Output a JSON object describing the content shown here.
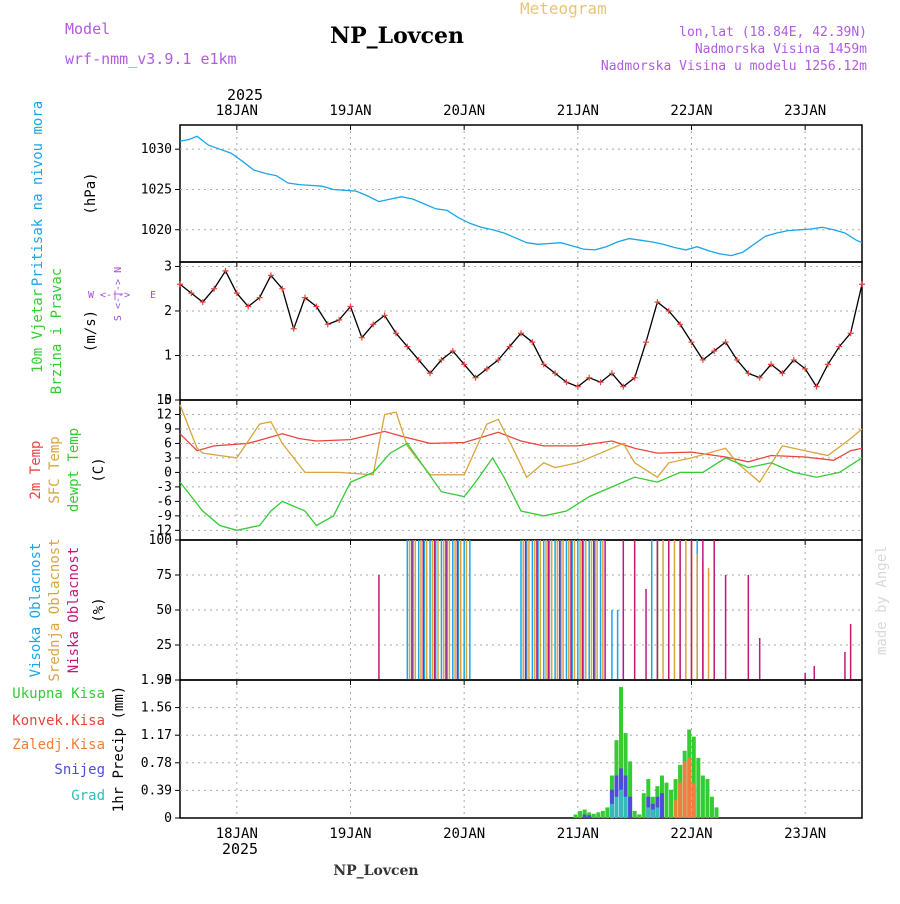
{
  "header": {
    "model_label": "Model",
    "model_name": "wrf-nmm_v3.9.1 e1km",
    "title": "Meteogram",
    "station": "NP_Lovcen",
    "coords": "lon,lat (18.84E, 42.39N)",
    "elevation": "Nadmorska Visina 1459m",
    "model_elevation": "Nadmorska Visina u modelu 1256.12m",
    "year_top": "2025",
    "year_bottom": "2025",
    "footer_station": "NP_Lovcen",
    "credit": "made by Angel"
  },
  "colors": {
    "pressure": "#1aa6e8",
    "wind_label": "#33cc33",
    "wind_dir": "#a64dd9",
    "temp_2m": "#e8453c",
    "temp_sfc": "#d9a53c",
    "dewpt": "#33cc33",
    "cloud_high": "#1aa6e8",
    "cloud_mid": "#d9a53c",
    "cloud_low": "#c2187a",
    "precip_total": "#33cc33",
    "precip_conv": "#e8453c",
    "precip_frozen": "#f07f3c",
    "snow": "#4d4dd9",
    "hail": "#33bbbb",
    "header_violet": "#b05ce0",
    "header_gold": "#e8c47a"
  },
  "chart_data": [
    {
      "type": "line",
      "panel": "pressure",
      "ylabel_lines": [
        "Pritisak na nivou mora",
        "(hPa)"
      ],
      "x_unit": "days since 2025-01-17 12 UTC",
      "x_range": [
        0,
        6
      ],
      "x_tick_labels": [
        "18JAN",
        "19JAN",
        "20JAN",
        "21JAN",
        "22JAN",
        "23JAN"
      ],
      "y_ticks": [
        1020,
        1025,
        1030
      ],
      "ylim": [
        1016,
        1033
      ],
      "series": [
        {
          "name": "Pritisak na nivou mora",
          "x": [
            0,
            0.08,
            0.15,
            0.25,
            0.35,
            0.45,
            0.55,
            0.65,
            0.75,
            0.85,
            0.95,
            1.05,
            1.15,
            1.25,
            1.35,
            1.45,
            1.55,
            1.65,
            1.75,
            1.85,
            1.95,
            2.05,
            2.15,
            2.25,
            2.35,
            2.45,
            2.55,
            2.65,
            2.75,
            2.85,
            2.95,
            3.05,
            3.15,
            3.25,
            3.35,
            3.45,
            3.55,
            3.65,
            3.75,
            3.85,
            3.95,
            4.05,
            4.15,
            4.25,
            4.35,
            4.45,
            4.55,
            4.65,
            4.75,
            4.85,
            4.95,
            5.05,
            5.15,
            5.25,
            5.35,
            5.45,
            5.55,
            5.65,
            5.75,
            5.85,
            5.95,
            6.0
          ],
          "values": [
            1031,
            1031.2,
            1031.6,
            1030.5,
            1030,
            1029.5,
            1028.5,
            1027.4,
            1027,
            1026.7,
            1025.8,
            1025.6,
            1025.5,
            1025.4,
            1025,
            1024.9,
            1024.8,
            1024.2,
            1023.5,
            1023.8,
            1024.1,
            1023.8,
            1023.2,
            1022.6,
            1022.4,
            1021.5,
            1020.8,
            1020.3,
            1020,
            1019.6,
            1019,
            1018.4,
            1018.2,
            1018.3,
            1018.4,
            1018,
            1017.6,
            1017.5,
            1017.9,
            1018.5,
            1018.9,
            1018.7,
            1018.5,
            1018.2,
            1017.8,
            1017.5,
            1017.9,
            1017.4,
            1017,
            1016.8,
            1017.2,
            1018.2,
            1019.2,
            1019.6,
            1019.9,
            1020,
            1020.1,
            1020.3,
            1020,
            1019.6,
            1018.7,
            1018.4
          ]
        }
      ]
    },
    {
      "type": "line",
      "panel": "wind",
      "ylabel_lines": [
        "10m Vjetar",
        "Brzina i Pravac",
        "(m/s)"
      ],
      "compass_labels": {
        "n": "N",
        "s": "S",
        "w": "W",
        "e": "E",
        "rose": "<-|->"
      },
      "x_range": [
        0,
        6
      ],
      "y_ticks": [
        0,
        1,
        2,
        3
      ],
      "ylim": [
        0,
        3.1
      ],
      "series": [
        {
          "name": "10m Vjetar",
          "x": [
            0,
            0.1,
            0.2,
            0.3,
            0.4,
            0.5,
            0.6,
            0.7,
            0.8,
            0.9,
            1.0,
            1.1,
            1.2,
            1.3,
            1.4,
            1.5,
            1.6,
            1.7,
            1.8,
            1.9,
            2.0,
            2.1,
            2.2,
            2.3,
            2.4,
            2.5,
            2.6,
            2.7,
            2.8,
            2.9,
            3.0,
            3.1,
            3.2,
            3.3,
            3.4,
            3.5,
            3.6,
            3.7,
            3.8,
            3.9,
            4.0,
            4.1,
            4.2,
            4.3,
            4.4,
            4.5,
            4.6,
            4.7,
            4.8,
            4.9,
            5.0,
            5.1,
            5.2,
            5.3,
            5.4,
            5.5,
            5.6,
            5.7,
            5.8,
            5.9,
            6.0
          ],
          "values": [
            2.6,
            2.4,
            2.2,
            2.5,
            2.9,
            2.4,
            2.1,
            2.3,
            2.8,
            2.5,
            1.6,
            2.3,
            2.1,
            1.7,
            1.8,
            2.1,
            1.4,
            1.7,
            1.9,
            1.5,
            1.2,
            0.9,
            0.6,
            0.9,
            1.1,
            0.8,
            0.5,
            0.7,
            0.9,
            1.2,
            1.5,
            1.3,
            0.8,
            0.6,
            0.4,
            0.3,
            0.5,
            0.4,
            0.6,
            0.3,
            0.5,
            1.3,
            2.2,
            2.0,
            1.7,
            1.3,
            0.9,
            1.1,
            1.3,
            0.9,
            0.6,
            0.5,
            0.8,
            0.6,
            0.9,
            0.7,
            0.3,
            0.8,
            1.2,
            1.5,
            2.6
          ]
        }
      ]
    },
    {
      "type": "line",
      "panel": "temperature",
      "ylabel_lines": [
        "2m Temp",
        "SFC Temp",
        "dewpt Temp",
        "(C)"
      ],
      "x_range": [
        0,
        6
      ],
      "y_ticks": [
        -12,
        -9,
        -6,
        -3,
        0,
        3,
        6,
        9,
        12,
        15
      ],
      "ylim": [
        -14,
        15
      ],
      "series": [
        {
          "name": "2m Temp",
          "x": [
            0,
            0.15,
            0.3,
            0.6,
            0.9,
            1.05,
            1.2,
            1.5,
            1.8,
            1.95,
            2.2,
            2.5,
            2.8,
            3.0,
            3.2,
            3.5,
            3.8,
            4.0,
            4.2,
            4.5,
            4.8,
            5.0,
            5.2,
            5.5,
            5.75,
            5.9,
            6.0
          ],
          "values": [
            8,
            4.5,
            5.5,
            6,
            8,
            7,
            6.5,
            6.8,
            8.5,
            7.5,
            6,
            6.2,
            8.3,
            6.5,
            5.5,
            5.5,
            6.5,
            5,
            4,
            4.2,
            3.2,
            2.2,
            3.5,
            3.2,
            2.5,
            4.5,
            5
          ]
        },
        {
          "name": "SFC Temp",
          "x": [
            0,
            0.15,
            0.2,
            0.5,
            0.7,
            0.8,
            0.9,
            1.1,
            1.2,
            1.4,
            1.7,
            1.8,
            1.9,
            2.0,
            2.2,
            2.3,
            2.5,
            2.7,
            2.8,
            2.95,
            3.05,
            3.2,
            3.3,
            3.5,
            3.9,
            4.0,
            4.2,
            4.3,
            4.5,
            4.8,
            4.9,
            5.1,
            5.3,
            5.5,
            5.7,
            5.9,
            6.0
          ],
          "values": [
            14,
            5,
            4,
            3,
            10,
            10.5,
            6,
            0,
            0,
            0,
            -0.5,
            12,
            12.5,
            5.5,
            -0.5,
            -0.5,
            -0.5,
            10,
            11,
            4,
            -1,
            2,
            1,
            2,
            6,
            2,
            -1,
            2,
            3,
            5,
            2,
            -2,
            5.5,
            4.5,
            3.5,
            7,
            9
          ]
        },
        {
          "name": "dewpt Temp",
          "x": [
            0,
            0.1,
            0.2,
            0.35,
            0.5,
            0.7,
            0.8,
            0.9,
            1.1,
            1.2,
            1.35,
            1.5,
            1.7,
            1.85,
            2.0,
            2.15,
            2.3,
            2.5,
            2.6,
            2.75,
            2.85,
            3.0,
            3.2,
            3.4,
            3.6,
            3.8,
            4.0,
            4.2,
            4.4,
            4.6,
            4.8,
            5.0,
            5.2,
            5.4,
            5.6,
            5.8,
            6.0
          ],
          "values": [
            -2,
            -5,
            -8,
            -11,
            -12,
            -11,
            -8,
            -6,
            -8,
            -11,
            -9,
            -2,
            0,
            4,
            6,
            1,
            -4,
            -5,
            -2,
            3,
            -1,
            -8,
            -9,
            -8,
            -5,
            -3,
            -1,
            -2,
            0,
            0,
            3,
            1,
            2,
            0,
            -1,
            0,
            3
          ]
        }
      ]
    },
    {
      "type": "bar",
      "panel": "clouds",
      "ylabel_lines": [
        "Visoka Oblacnost",
        "Srednja Oblacnost",
        "Niska Oblacnost",
        "(%)"
      ],
      "x_range": [
        0,
        6
      ],
      "y_ticks": [
        0,
        25,
        50,
        75,
        100
      ],
      "ylim": [
        0,
        100
      ],
      "series": [
        {
          "name": "Visoka Oblacnost",
          "x": [
            2.0,
            2.05,
            2.1,
            2.15,
            2.2,
            2.25,
            2.3,
            2.35,
            2.4,
            2.45,
            2.5,
            2.55,
            3.0,
            3.05,
            3.1,
            3.15,
            3.2,
            3.25,
            3.3,
            3.35,
            3.4,
            3.45,
            3.5,
            3.55,
            3.6,
            3.65,
            3.7,
            3.8,
            3.85,
            3.9,
            4.15,
            4.2,
            4.55,
            4.6
          ],
          "values": [
            100,
            100,
            100,
            100,
            100,
            100,
            100,
            100,
            100,
            100,
            100,
            100,
            100,
            100,
            100,
            100,
            100,
            100,
            100,
            100,
            100,
            100,
            100,
            100,
            100,
            100,
            100,
            50,
            50,
            25,
            100,
            100,
            100,
            75
          ]
        },
        {
          "name": "Srednja Oblacnost",
          "x": [
            2.02,
            2.07,
            2.12,
            2.17,
            2.22,
            2.27,
            2.32,
            2.37,
            2.42,
            2.47,
            2.52,
            3.02,
            3.07,
            3.12,
            3.17,
            3.22,
            3.27,
            3.32,
            3.37,
            3.42,
            3.47,
            3.52,
            3.57,
            3.62,
            3.67,
            3.72,
            4.2,
            4.25,
            4.3,
            4.35,
            4.4,
            4.45,
            4.5,
            4.55,
            4.6,
            4.65
          ],
          "values": [
            100,
            100,
            100,
            100,
            100,
            100,
            100,
            100,
            100,
            100,
            100,
            100,
            100,
            100,
            100,
            100,
            100,
            100,
            100,
            100,
            100,
            100,
            100,
            100,
            100,
            100,
            100,
            100,
            100,
            100,
            100,
            100,
            100,
            90,
            85,
            80
          ]
        },
        {
          "name": "Niska Oblacnost",
          "x": [
            1.75,
            2.04,
            2.14,
            2.24,
            2.34,
            2.44,
            3.04,
            3.14,
            3.24,
            3.34,
            3.44,
            3.54,
            3.64,
            3.74,
            3.9,
            4.0,
            4.1,
            4.2,
            4.3,
            4.4,
            4.5,
            4.6,
            4.7,
            4.8,
            5.0,
            5.1,
            5.5,
            5.58,
            5.85,
            5.9
          ],
          "values": [
            75,
            100,
            100,
            100,
            100,
            100,
            100,
            100,
            100,
            100,
            100,
            100,
            100,
            100,
            100,
            100,
            65,
            100,
            100,
            100,
            100,
            100,
            100,
            75,
            75,
            30,
            5,
            10,
            20,
            40
          ]
        }
      ]
    },
    {
      "type": "bar",
      "panel": "precipitation",
      "ylabel_lines": [
        "1hr Precip (mm)"
      ],
      "legend": [
        "Ukupna Kisa",
        "Konvek.Kisa",
        "Zaledj.Kisa",
        "Snijeg",
        "Grad"
      ],
      "x_range": [
        0,
        6
      ],
      "y_ticks": [
        0,
        0.39,
        0.78,
        1.17,
        1.56,
        1.95
      ],
      "ylim": [
        0,
        1.95
      ],
      "series": [
        {
          "name": "Ukupna Kisa",
          "x": [
            3.48,
            3.52,
            3.56,
            3.6,
            3.64,
            3.68,
            3.72,
            3.76,
            3.8,
            3.84,
            3.88,
            3.92,
            3.96,
            4.0,
            4.04,
            4.08,
            4.12,
            4.16,
            4.2,
            4.24,
            4.28,
            4.32,
            4.36,
            4.4,
            4.44,
            4.48,
            4.52,
            4.56,
            4.6,
            4.64,
            4.68,
            4.72
          ],
          "values": [
            0.05,
            0.1,
            0.12,
            0.08,
            0.06,
            0.08,
            0.1,
            0.15,
            0.6,
            1.1,
            1.85,
            1.2,
            0.8,
            0.1,
            0.05,
            0.35,
            0.55,
            0.3,
            0.45,
            0.6,
            0.5,
            0.4,
            0.55,
            0.75,
            0.95,
            1.25,
            1.15,
            0.85,
            0.6,
            0.55,
            0.3,
            0.15
          ]
        },
        {
          "name": "Zaledj.Kisa",
          "x": [
            4.36,
            4.4,
            4.44,
            4.48,
            4.52
          ],
          "values": [
            0.25,
            0.5,
            0.8,
            0.85,
            0.5
          ]
        },
        {
          "name": "Snijeg",
          "x": [
            3.56,
            3.6,
            3.8,
            3.84,
            3.88,
            3.92,
            3.96,
            4.12,
            4.16,
            4.2,
            4.24
          ],
          "values": [
            0.05,
            0.04,
            0.4,
            0.6,
            0.7,
            0.6,
            0.3,
            0.3,
            0.2,
            0.3,
            0.35
          ]
        },
        {
          "name": "Grad",
          "x": [
            3.8,
            3.84,
            3.88,
            3.92,
            4.12,
            4.16,
            4.2
          ],
          "values": [
            0.2,
            0.3,
            0.4,
            0.3,
            0.15,
            0.12,
            0.15
          ]
        }
      ]
    }
  ]
}
